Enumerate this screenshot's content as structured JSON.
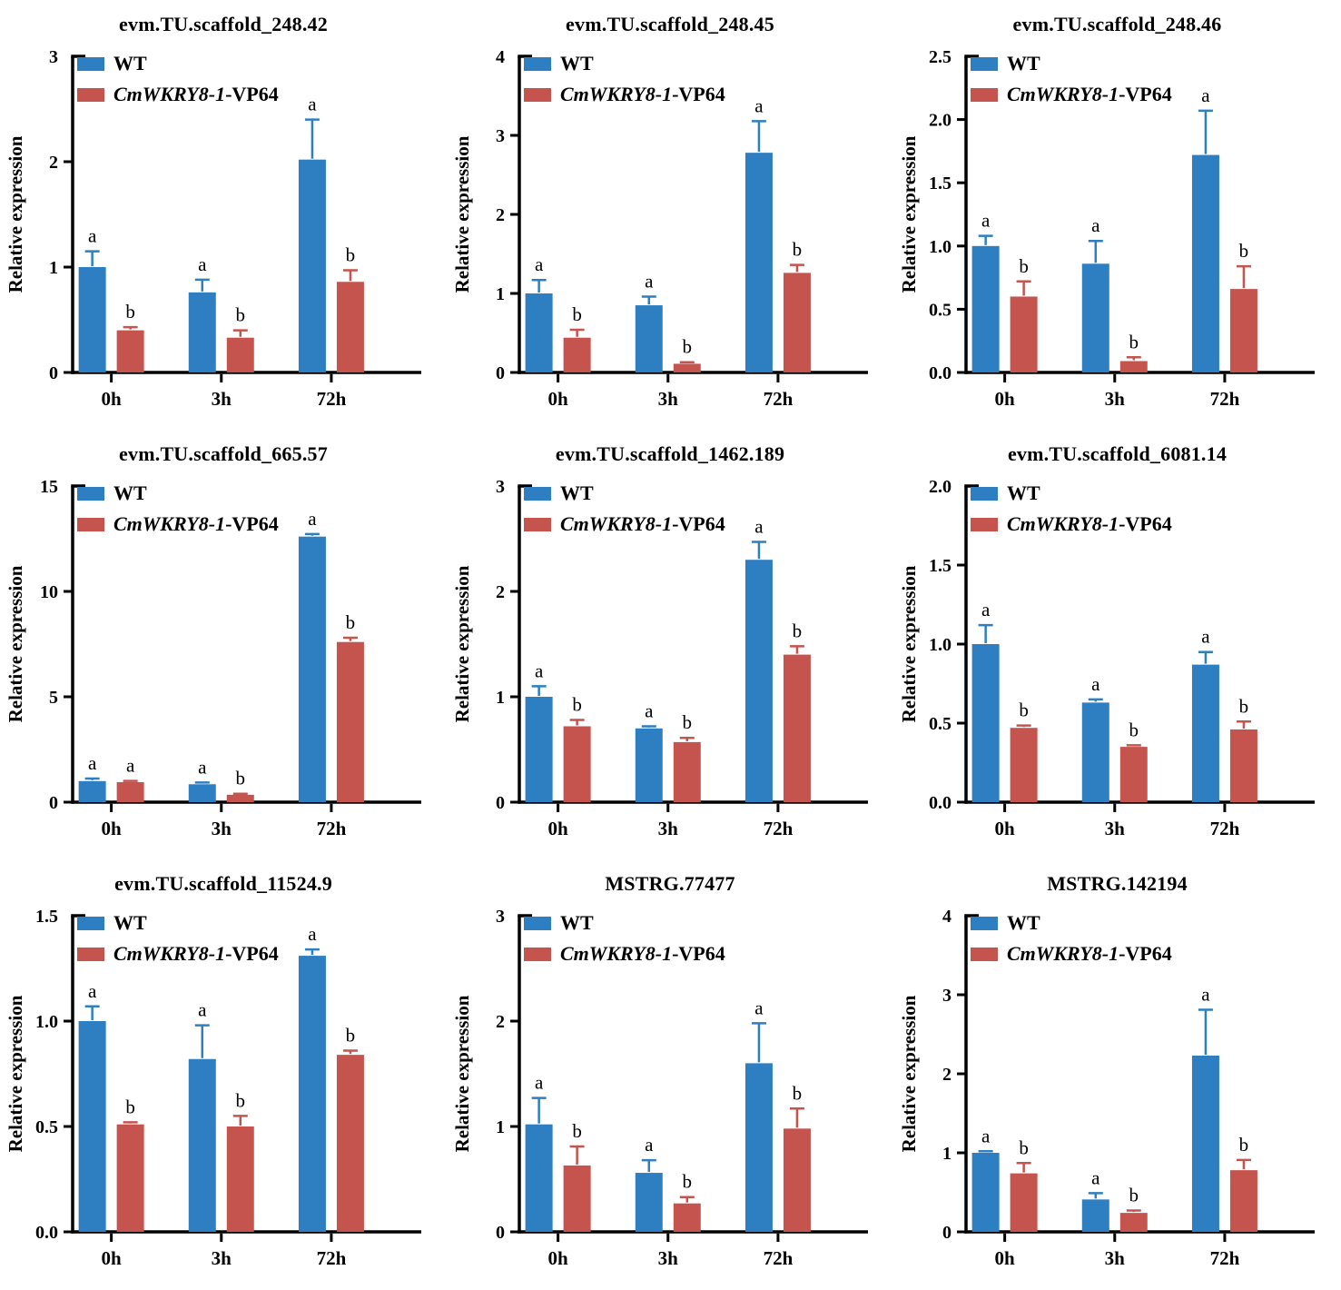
{
  "figure": {
    "ylabel": "Relative expression",
    "categories": [
      "0h",
      "3h",
      "72h"
    ],
    "legend": {
      "wt_label": "WT",
      "transgenic_label_italic": "CmWKRY8-1",
      "transgenic_label_regular": "-VP64"
    },
    "colors": {
      "wt": "#2E7FC2",
      "transgenic": "#C5534E",
      "axis": "#000000"
    }
  },
  "chart_data": [
    {
      "type": "bar",
      "title": "evm.TU.scaffold_248.42",
      "categories": [
        "0h",
        "3h",
        "72h"
      ],
      "ylabel": "Relative expression",
      "ylim": [
        0,
        3
      ],
      "yticks": [
        "0",
        "1",
        "2",
        "3"
      ],
      "legend_position": "top-left",
      "series": [
        {
          "name": "WT",
          "values": [
            1.0,
            0.76,
            2.02
          ],
          "errors": [
            0.15,
            0.12,
            0.38
          ],
          "letters": [
            "a",
            "a",
            "a"
          ]
        },
        {
          "name": "CmWKRY8-1-VP64",
          "values": [
            0.4,
            0.33,
            0.86
          ],
          "errors": [
            0.03,
            0.07,
            0.11
          ],
          "letters": [
            "b",
            "b",
            "b"
          ]
        }
      ]
    },
    {
      "type": "bar",
      "title": "evm.TU.scaffold_248.45",
      "categories": [
        "0h",
        "3h",
        "72h"
      ],
      "ylabel": "Relative expression",
      "ylim": [
        0,
        4
      ],
      "yticks": [
        "0",
        "1",
        "2",
        "3",
        "4"
      ],
      "legend_position": "top-left",
      "series": [
        {
          "name": "WT",
          "values": [
            1.0,
            0.85,
            2.78
          ],
          "errors": [
            0.17,
            0.11,
            0.4
          ],
          "letters": [
            "a",
            "a",
            "a"
          ]
        },
        {
          "name": "CmWKRY8-1-VP64",
          "values": [
            0.44,
            0.11,
            1.26
          ],
          "errors": [
            0.1,
            0.02,
            0.1
          ],
          "letters": [
            "b",
            "b",
            "b"
          ]
        }
      ]
    },
    {
      "type": "bar",
      "title": "evm.TU.scaffold_248.46",
      "categories": [
        "0h",
        "3h",
        "72h"
      ],
      "ylabel": "Relative expression",
      "ylim": [
        0,
        2.5
      ],
      "yticks": [
        "0.0",
        "0.5",
        "1.0",
        "1.5",
        "2.0",
        "2.5"
      ],
      "legend_position": "top-left",
      "series": [
        {
          "name": "WT",
          "values": [
            1.0,
            0.86,
            1.72
          ],
          "errors": [
            0.08,
            0.18,
            0.35
          ],
          "letters": [
            "a",
            "a",
            "a"
          ]
        },
        {
          "name": "CmWKRY8-1-VP64",
          "values": [
            0.6,
            0.09,
            0.66
          ],
          "errors": [
            0.12,
            0.03,
            0.18
          ],
          "letters": [
            "b",
            "b",
            "b"
          ]
        }
      ]
    },
    {
      "type": "bar",
      "title": "evm.TU.scaffold_665.57",
      "categories": [
        "0h",
        "3h",
        "72h"
      ],
      "ylabel": "Relative expression",
      "ylim": [
        0,
        15
      ],
      "yticks": [
        "0",
        "5",
        "10",
        "15"
      ],
      "legend_position": "top-left",
      "series": [
        {
          "name": "WT",
          "values": [
            1.0,
            0.85,
            12.6
          ],
          "errors": [
            0.12,
            0.08,
            0.12
          ],
          "letters": [
            "a",
            "a",
            "a"
          ]
        },
        {
          "name": "CmWKRY8-1-VP64",
          "values": [
            0.95,
            0.35,
            7.6
          ],
          "errors": [
            0.06,
            0.05,
            0.2
          ],
          "letters": [
            "a",
            "b",
            "b"
          ]
        }
      ]
    },
    {
      "type": "bar",
      "title": "evm.TU.scaffold_1462.189",
      "categories": [
        "0h",
        "3h",
        "72h"
      ],
      "ylabel": "Relative expression",
      "ylim": [
        0,
        3
      ],
      "yticks": [
        "0",
        "1",
        "2",
        "3"
      ],
      "legend_position": "top-left",
      "series": [
        {
          "name": "WT",
          "values": [
            1.0,
            0.7,
            2.3
          ],
          "errors": [
            0.1,
            0.02,
            0.17
          ],
          "letters": [
            "a",
            "a",
            "a"
          ]
        },
        {
          "name": "CmWKRY8-1-VP64",
          "values": [
            0.72,
            0.57,
            1.4
          ],
          "errors": [
            0.06,
            0.04,
            0.08
          ],
          "letters": [
            "b",
            "b",
            "b"
          ]
        }
      ]
    },
    {
      "type": "bar",
      "title": "evm.TU.scaffold_6081.14",
      "categories": [
        "0h",
        "3h",
        "72h"
      ],
      "ylabel": "Relative expression",
      "ylim": [
        0,
        2
      ],
      "yticks": [
        "0.0",
        "0.5",
        "1.0",
        "1.5",
        "2.0"
      ],
      "legend_position": "top-left",
      "series": [
        {
          "name": "WT",
          "values": [
            1.0,
            0.63,
            0.87
          ],
          "errors": [
            0.12,
            0.02,
            0.08
          ],
          "letters": [
            "a",
            "a",
            "a"
          ]
        },
        {
          "name": "CmWKRY8-1-VP64",
          "values": [
            0.47,
            0.35,
            0.46
          ],
          "errors": [
            0.015,
            0.01,
            0.05
          ],
          "letters": [
            "b",
            "b",
            "b"
          ]
        }
      ]
    },
    {
      "type": "bar",
      "title": "evm.TU.scaffold_11524.9",
      "categories": [
        "0h",
        "3h",
        "72h"
      ],
      "ylabel": "Relative expression",
      "ylim": [
        0,
        1.5
      ],
      "yticks": [
        "0.0",
        "0.5",
        "1.0",
        "1.5"
      ],
      "legend_position": "top-left",
      "series": [
        {
          "name": "WT",
          "values": [
            1.0,
            0.82,
            1.31
          ],
          "errors": [
            0.07,
            0.16,
            0.03
          ],
          "letters": [
            "a",
            "a",
            "a"
          ]
        },
        {
          "name": "CmWKRY8-1-VP64",
          "values": [
            0.51,
            0.5,
            0.84
          ],
          "errors": [
            0.01,
            0.05,
            0.02
          ],
          "letters": [
            "b",
            "b",
            "b"
          ]
        }
      ]
    },
    {
      "type": "bar",
      "title": "MSTRG.77477",
      "categories": [
        "0h",
        "3h",
        "72h"
      ],
      "ylabel": "Relative expression",
      "ylim": [
        0,
        3
      ],
      "yticks": [
        "0",
        "1",
        "2",
        "3"
      ],
      "legend_position": "top-left",
      "series": [
        {
          "name": "WT",
          "values": [
            1.02,
            0.56,
            1.6
          ],
          "errors": [
            0.25,
            0.12,
            0.38
          ],
          "letters": [
            "a",
            "a",
            "a"
          ]
        },
        {
          "name": "CmWKRY8-1-VP64",
          "values": [
            0.63,
            0.27,
            0.98
          ],
          "errors": [
            0.18,
            0.06,
            0.19
          ],
          "letters": [
            "b",
            "b",
            "b"
          ]
        }
      ]
    },
    {
      "type": "bar",
      "title": "MSTRG.142194",
      "categories": [
        "0h",
        "3h",
        "72h"
      ],
      "ylabel": "Relative expression",
      "ylim": [
        0,
        4
      ],
      "yticks": [
        "0",
        "1",
        "2",
        "3",
        "4"
      ],
      "legend_position": "top-left",
      "series": [
        {
          "name": "WT",
          "values": [
            1.0,
            0.41,
            2.23
          ],
          "errors": [
            0.02,
            0.08,
            0.58
          ],
          "letters": [
            "a",
            "a",
            "a"
          ]
        },
        {
          "name": "CmWKRY8-1-VP64",
          "values": [
            0.74,
            0.24,
            0.78
          ],
          "errors": [
            0.13,
            0.03,
            0.13
          ],
          "letters": [
            "b",
            "b",
            "b"
          ]
        }
      ]
    }
  ]
}
